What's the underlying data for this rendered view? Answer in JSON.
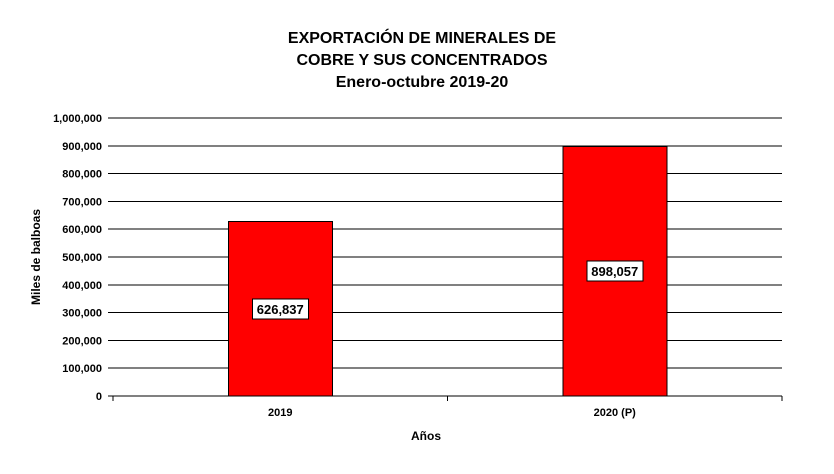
{
  "chart_data": {
    "type": "bar",
    "title_lines": [
      "EXPORTACIÓN DE MINERALES DE",
      "COBRE Y SUS CONCENTRADOS",
      "Enero-octubre 2019-20"
    ],
    "categories": [
      "2019",
      "2020 (P)"
    ],
    "values": [
      626837,
      898057
    ],
    "data_labels": [
      "626,837",
      "898,057"
    ],
    "xlabel": "Años",
    "ylabel": "Miles de balboas",
    "ylim": [
      0,
      1000000
    ],
    "yticks": [
      0,
      100000,
      200000,
      300000,
      400000,
      500000,
      600000,
      700000,
      800000,
      900000,
      1000000
    ],
    "ytick_labels": [
      "0",
      "100,000",
      "200,000",
      "300,000",
      "400,000",
      "500,000",
      "600,000",
      "700,000",
      "800,000",
      "900,000",
      "1,000,000"
    ],
    "grid": true,
    "legend": "none",
    "bar_color": "#ff0000"
  }
}
